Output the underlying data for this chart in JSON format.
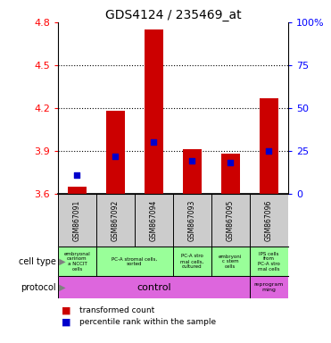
{
  "title": "GDS4124 / 235469_at",
  "samples": [
    "GSM867091",
    "GSM867092",
    "GSM867094",
    "GSM867093",
    "GSM867095",
    "GSM867096"
  ],
  "red_values": [
    3.65,
    4.18,
    4.75,
    3.91,
    3.88,
    4.27
  ],
  "blue_values": [
    3.73,
    3.86,
    3.96,
    3.83,
    3.82,
    3.9
  ],
  "ylim": [
    3.6,
    4.8
  ],
  "yticks": [
    3.6,
    3.9,
    4.2,
    4.5,
    4.8
  ],
  "y2ticks": [
    0,
    25,
    50,
    75,
    100
  ],
  "y2labels": [
    "0",
    "25",
    "50",
    "75",
    "100%"
  ],
  "dotted_lines": [
    4.5,
    4.2,
    3.9
  ],
  "bar_color": "#cc0000",
  "point_color": "#0000cc",
  "bar_width": 0.5,
  "point_size": 25,
  "sample_bg": "#cccccc",
  "cell_bg": "#99ff99",
  "proto_bg": "#dd66dd",
  "cell_types": [
    [
      0,
      1,
      "embryonal\ncarinom\na NCCIT\ncells"
    ],
    [
      1,
      3,
      "PC-A stromal cells,\nsorted"
    ],
    [
      3,
      4,
      "PC-A stro\nmal cells,\ncultured"
    ],
    [
      4,
      5,
      "embryoni\nc stem\ncells"
    ],
    [
      5,
      6,
      "IPS cells\nfrom\nPC-A stro\nmal cells"
    ]
  ],
  "legend_items": [
    {
      "color": "#cc0000",
      "label": "transformed count"
    },
    {
      "color": "#0000cc",
      "label": "percentile rank within the sample"
    }
  ]
}
